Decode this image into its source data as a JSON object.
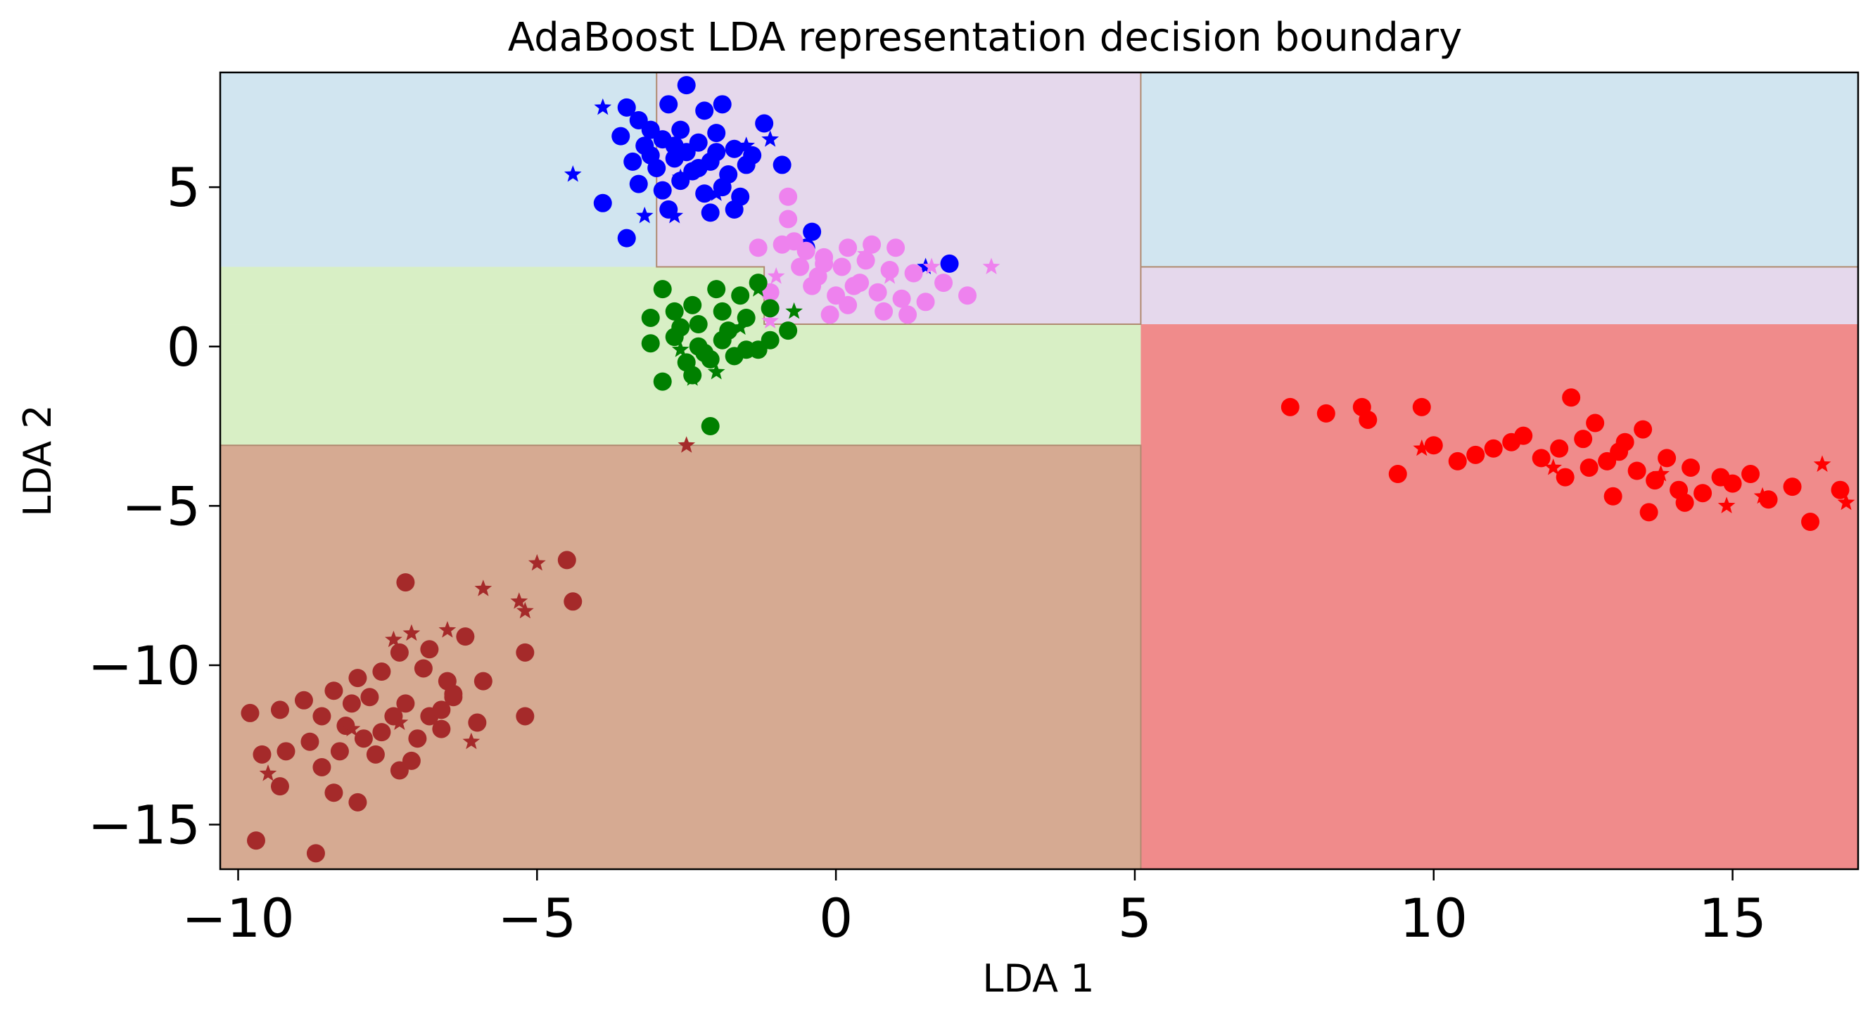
{
  "chart_data": {
    "type": "scatter",
    "title": "AdaBoost LDA representation decision boundary",
    "xlabel": "LDA 1",
    "ylabel": "LDA 2",
    "xlim": [
      -10.3,
      17.1
    ],
    "ylim": [
      -16.4,
      8.6
    ],
    "x_ticks": [
      -10,
      -5,
      0,
      5,
      10,
      15
    ],
    "x_tick_labels": [
      "−10",
      "−5",
      "0",
      "5",
      "10",
      "15"
    ],
    "y_ticks": [
      -15,
      -10,
      -5,
      0,
      5
    ],
    "y_tick_labels": [
      "−15",
      "−10",
      "−5",
      "0",
      "5"
    ],
    "regions": [
      {
        "class": "blue",
        "fill": "#d1e5f0",
        "x": [
          -10.3,
          -3.0
        ],
        "y": [
          2.5,
          8.6
        ]
      },
      {
        "class": "violet",
        "fill": "#e5d8ec",
        "x": [
          -3.0,
          5.1
        ],
        "y": [
          2.5,
          8.6
        ]
      },
      {
        "class": "violet",
        "fill": "#e5d8ec",
        "x": [
          -1.2,
          17.1
        ],
        "y": [
          0.7,
          2.5
        ]
      },
      {
        "class": "blue",
        "fill": "#d1e5f0",
        "x": [
          5.1,
          17.1
        ],
        "y": [
          2.5,
          8.6
        ]
      },
      {
        "class": "green",
        "fill": "#d8efc5",
        "x": [
          -10.3,
          -1.2
        ],
        "y": [
          0.7,
          2.5
        ]
      },
      {
        "class": "green",
        "fill": "#d8efc5",
        "x": [
          -10.3,
          5.1
        ],
        "y": [
          -3.1,
          0.7
        ]
      },
      {
        "class": "brown",
        "fill": "#d6aa92",
        "x": [
          -10.3,
          5.1
        ],
        "y": [
          -16.4,
          -3.1
        ]
      },
      {
        "class": "red",
        "fill": "#f08b8b",
        "x": [
          5.1,
          17.1
        ],
        "y": [
          -16.4,
          0.7
        ]
      }
    ],
    "series": [
      {
        "color": "#0000ff",
        "circles": [
          [
            -3.5,
            7.5
          ],
          [
            -3.3,
            7.1
          ],
          [
            -3.1,
            6.8
          ],
          [
            -2.8,
            7.6
          ],
          [
            -2.5,
            8.2
          ],
          [
            -2.2,
            7.4
          ],
          [
            -1.9,
            7.6
          ],
          [
            -1.2,
            7.0
          ],
          [
            -3.6,
            6.6
          ],
          [
            -3.2,
            6.3
          ],
          [
            -2.9,
            6.5
          ],
          [
            -2.6,
            6.8
          ],
          [
            -2.3,
            6.4
          ],
          [
            -2.0,
            6.7
          ],
          [
            -1.7,
            6.2
          ],
          [
            -1.4,
            6.0
          ],
          [
            -3.4,
            5.8
          ],
          [
            -3.0,
            5.6
          ],
          [
            -2.7,
            5.9
          ],
          [
            -2.4,
            5.5
          ],
          [
            -2.1,
            5.8
          ],
          [
            -1.8,
            5.4
          ],
          [
            -1.5,
            5.7
          ],
          [
            -0.9,
            5.7
          ],
          [
            -3.3,
            5.1
          ],
          [
            -2.9,
            4.9
          ],
          [
            -2.6,
            5.2
          ],
          [
            -2.2,
            4.8
          ],
          [
            -1.9,
            5.0
          ],
          [
            -1.6,
            4.7
          ],
          [
            -3.9,
            4.5
          ],
          [
            -3.5,
            3.4
          ],
          [
            -2.8,
            4.3
          ],
          [
            -2.1,
            4.2
          ],
          [
            -1.7,
            4.3
          ],
          [
            -2.5,
            6.1
          ],
          [
            -2.3,
            5.6
          ],
          [
            -2.7,
            6.3
          ],
          [
            -2.0,
            6.1
          ],
          [
            -3.1,
            6.0
          ],
          [
            -0.4,
            3.6
          ],
          [
            -0.5,
            3.1
          ],
          [
            1.9,
            2.6
          ]
        ],
        "stars": [
          [
            -4.4,
            5.4
          ],
          [
            -3.9,
            7.5
          ],
          [
            -3.2,
            4.1
          ],
          [
            -2.7,
            4.1
          ],
          [
            -1.5,
            6.3
          ],
          [
            -1.1,
            6.5
          ],
          [
            1.5,
            2.5
          ],
          [
            -2.6,
            5.3
          ],
          [
            -2.0,
            4.8
          ]
        ]
      },
      {
        "color": "#ee82ee",
        "circles": [
          [
            -0.8,
            4.7
          ],
          [
            -1.3,
            3.1
          ],
          [
            -0.9,
            3.2
          ],
          [
            -0.5,
            3.0
          ],
          [
            -0.2,
            2.8
          ],
          [
            0.2,
            3.1
          ],
          [
            0.6,
            3.2
          ],
          [
            1.0,
            3.1
          ],
          [
            -0.6,
            2.5
          ],
          [
            -0.3,
            2.2
          ],
          [
            0.1,
            2.5
          ],
          [
            0.5,
            2.7
          ],
          [
            0.9,
            2.4
          ],
          [
            1.3,
            2.3
          ],
          [
            1.8,
            2.0
          ],
          [
            -0.4,
            1.9
          ],
          [
            0.0,
            1.6
          ],
          [
            0.3,
            1.9
          ],
          [
            0.7,
            1.7
          ],
          [
            1.1,
            1.5
          ],
          [
            1.5,
            1.4
          ],
          [
            2.2,
            1.6
          ],
          [
            -1.1,
            1.7
          ],
          [
            0.2,
            1.3
          ],
          [
            0.8,
            1.1
          ],
          [
            -0.1,
            1.0
          ],
          [
            1.2,
            1.0
          ],
          [
            -0.7,
            3.3
          ],
          [
            0.4,
            2.0
          ],
          [
            -0.2,
            2.6
          ],
          [
            -0.8,
            4.0
          ]
        ],
        "stars": [
          [
            -1.0,
            2.2
          ],
          [
            0.5,
            2.9
          ],
          [
            1.6,
            2.5
          ],
          [
            2.6,
            2.5
          ],
          [
            -1.1,
            0.8
          ],
          [
            0.9,
            2.2
          ]
        ]
      },
      {
        "color": "#008000",
        "circles": [
          [
            -2.9,
            1.8
          ],
          [
            -2.4,
            1.3
          ],
          [
            -2.0,
            1.8
          ],
          [
            -1.6,
            1.6
          ],
          [
            -1.3,
            2.0
          ],
          [
            -3.1,
            0.9
          ],
          [
            -2.7,
            1.1
          ],
          [
            -2.3,
            0.7
          ],
          [
            -1.9,
            1.1
          ],
          [
            -1.5,
            0.9
          ],
          [
            -1.1,
            1.2
          ],
          [
            -0.8,
            0.5
          ],
          [
            -3.1,
            0.1
          ],
          [
            -2.7,
            0.3
          ],
          [
            -2.3,
            0.0
          ],
          [
            -1.9,
            0.2
          ],
          [
            -1.5,
            -0.1
          ],
          [
            -1.1,
            0.2
          ],
          [
            -2.5,
            -0.5
          ],
          [
            -2.1,
            -0.4
          ],
          [
            -1.7,
            -0.3
          ],
          [
            -1.3,
            -0.1
          ],
          [
            -2.4,
            -0.9
          ],
          [
            -2.9,
            -1.1
          ],
          [
            -2.1,
            -2.5
          ],
          [
            -2.6,
            0.6
          ],
          [
            -1.8,
            0.5
          ],
          [
            -2.2,
            -0.2
          ]
        ],
        "stars": [
          [
            -1.3,
            1.8
          ],
          [
            -0.7,
            1.1
          ],
          [
            -2.4,
            -1.0
          ],
          [
            -2.0,
            -0.8
          ],
          [
            -2.6,
            -0.1
          ],
          [
            -1.6,
            0.6
          ]
        ]
      },
      {
        "color": "#a52a2a",
        "circles": [
          [
            -4.5,
            -6.7
          ],
          [
            -4.4,
            -8.0
          ],
          [
            -7.2,
            -7.4
          ],
          [
            -6.2,
            -9.1
          ],
          [
            -6.8,
            -9.5
          ],
          [
            -7.3,
            -9.6
          ],
          [
            -6.9,
            -10.1
          ],
          [
            -6.5,
            -10.5
          ],
          [
            -7.6,
            -10.2
          ],
          [
            -8.0,
            -10.4
          ],
          [
            -8.4,
            -10.8
          ],
          [
            -7.8,
            -11.0
          ],
          [
            -7.2,
            -11.2
          ],
          [
            -6.8,
            -11.6
          ],
          [
            -6.4,
            -11.0
          ],
          [
            -8.9,
            -11.1
          ],
          [
            -9.3,
            -11.4
          ],
          [
            -8.6,
            -11.6
          ],
          [
            -8.2,
            -11.9
          ],
          [
            -7.6,
            -12.1
          ],
          [
            -7.0,
            -12.3
          ],
          [
            -6.6,
            -12.0
          ],
          [
            -8.8,
            -12.4
          ],
          [
            -8.3,
            -12.7
          ],
          [
            -7.7,
            -12.8
          ],
          [
            -7.1,
            -13.0
          ],
          [
            -9.2,
            -12.7
          ],
          [
            -8.6,
            -13.2
          ],
          [
            -9.8,
            -11.5
          ],
          [
            -9.6,
            -12.8
          ],
          [
            -9.3,
            -13.8
          ],
          [
            -8.4,
            -14.0
          ],
          [
            -8.0,
            -14.3
          ],
          [
            -8.7,
            -15.9
          ],
          [
            -9.7,
            -15.5
          ],
          [
            -5.2,
            -9.6
          ],
          [
            -5.2,
            -11.6
          ],
          [
            -6.4,
            -10.9
          ],
          [
            -6.0,
            -11.8
          ],
          [
            -5.9,
            -10.5
          ],
          [
            -7.9,
            -12.3
          ],
          [
            -7.4,
            -11.6
          ],
          [
            -6.6,
            -11.4
          ],
          [
            -7.3,
            -13.3
          ],
          [
            -8.1,
            -11.2
          ]
        ],
        "stars": [
          [
            -5.0,
            -6.8
          ],
          [
            -5.9,
            -7.6
          ],
          [
            -5.3,
            -8.0
          ],
          [
            -5.2,
            -8.3
          ],
          [
            -6.5,
            -8.9
          ],
          [
            -7.4,
            -9.2
          ],
          [
            -7.1,
            -9.0
          ],
          [
            -8.1,
            -12.0
          ],
          [
            -7.3,
            -11.8
          ],
          [
            -9.5,
            -13.4
          ],
          [
            -6.1,
            -12.4
          ],
          [
            -2.5,
            -3.1
          ]
        ]
      },
      {
        "color": "#ff0000",
        "circles": [
          [
            7.6,
            -1.9
          ],
          [
            8.2,
            -2.1
          ],
          [
            8.8,
            -1.9
          ],
          [
            8.9,
            -2.3
          ],
          [
            9.8,
            -1.9
          ],
          [
            9.4,
            -4.0
          ],
          [
            10.0,
            -3.1
          ],
          [
            10.4,
            -3.6
          ],
          [
            10.7,
            -3.4
          ],
          [
            11.0,
            -3.2
          ],
          [
            11.3,
            -3.0
          ],
          [
            11.5,
            -2.8
          ],
          [
            11.8,
            -3.5
          ],
          [
            12.1,
            -3.2
          ],
          [
            12.3,
            -1.6
          ],
          [
            12.2,
            -4.1
          ],
          [
            12.6,
            -3.8
          ],
          [
            12.9,
            -3.6
          ],
          [
            12.7,
            -2.4
          ],
          [
            13.1,
            -3.3
          ],
          [
            13.4,
            -3.9
          ],
          [
            13.5,
            -2.6
          ],
          [
            13.7,
            -4.2
          ],
          [
            13.9,
            -3.5
          ],
          [
            14.1,
            -4.5
          ],
          [
            14.3,
            -3.8
          ],
          [
            14.5,
            -4.6
          ],
          [
            14.8,
            -4.1
          ],
          [
            13.0,
            -4.7
          ],
          [
            13.6,
            -5.2
          ],
          [
            14.2,
            -4.9
          ],
          [
            15.0,
            -4.3
          ],
          [
            15.3,
            -4.0
          ],
          [
            15.6,
            -4.8
          ],
          [
            16.0,
            -4.4
          ],
          [
            16.3,
            -5.5
          ],
          [
            16.8,
            -4.5
          ],
          [
            13.2,
            -3.0
          ],
          [
            12.5,
            -2.9
          ]
        ],
        "stars": [
          [
            9.8,
            -3.2
          ],
          [
            14.9,
            -5.0
          ],
          [
            15.5,
            -4.7
          ],
          [
            16.5,
            -3.7
          ],
          [
            16.9,
            -4.9
          ],
          [
            12.0,
            -3.8
          ],
          [
            13.8,
            -4.0
          ]
        ]
      }
    ]
  }
}
